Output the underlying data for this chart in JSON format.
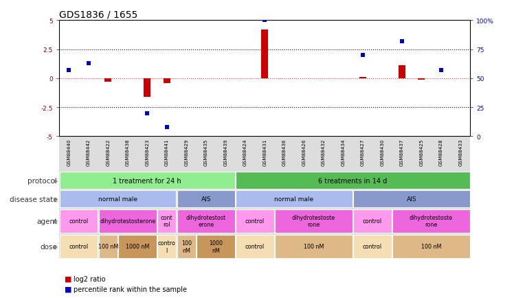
{
  "title": "GDS1836 / 1655",
  "samples": [
    "GSM88440",
    "GSM88442",
    "GSM88422",
    "GSM88438",
    "GSM88423",
    "GSM88441",
    "GSM88429",
    "GSM88435",
    "GSM88439",
    "GSM88424",
    "GSM88431",
    "GSM88436",
    "GSM88426",
    "GSM88432",
    "GSM88434",
    "GSM88427",
    "GSM88430",
    "GSM88437",
    "GSM88425",
    "GSM88428",
    "GSM88433"
  ],
  "log2_ratio": [
    0.0,
    0.0,
    -0.3,
    0.0,
    -1.6,
    -0.4,
    0.0,
    0.0,
    0.0,
    0.0,
    4.2,
    0.0,
    0.0,
    0.0,
    0.0,
    0.1,
    0.0,
    1.1,
    -0.1,
    0.0,
    0.0
  ],
  "percentile": [
    57,
    63,
    null,
    null,
    20,
    8,
    null,
    null,
    null,
    null,
    100,
    null,
    null,
    null,
    null,
    70,
    null,
    82,
    null,
    57,
    null
  ],
  "ylim_left": [
    -5,
    5
  ],
  "ylim_right": [
    0,
    100
  ],
  "yticks_left": [
    -5,
    -2.5,
    0,
    2.5,
    5
  ],
  "yticks_right": [
    0,
    25,
    50,
    75,
    100
  ],
  "ytick_labels_right": [
    "0",
    "25",
    "50",
    "75",
    "100%"
  ],
  "protocol_row": {
    "label": "protocol",
    "segments": [
      {
        "text": "1 treatment for 24 h",
        "start": 0,
        "end": 9,
        "color": "#90EE90"
      },
      {
        "text": "6 treatments in 14 d",
        "start": 9,
        "end": 21,
        "color": "#55BB55"
      }
    ]
  },
  "disease_state_row": {
    "label": "disease state",
    "segments": [
      {
        "text": "normal male",
        "start": 0,
        "end": 6,
        "color": "#AABBEE"
      },
      {
        "text": "AIS",
        "start": 6,
        "end": 9,
        "color": "#8899CC"
      },
      {
        "text": "normal male",
        "start": 9,
        "end": 15,
        "color": "#AABBEE"
      },
      {
        "text": "AIS",
        "start": 15,
        "end": 21,
        "color": "#8899CC"
      }
    ]
  },
  "agent_row": {
    "label": "agent",
    "segments": [
      {
        "text": "control",
        "start": 0,
        "end": 2,
        "color": "#FF99EE"
      },
      {
        "text": "dihydrotestosterone",
        "start": 2,
        "end": 5,
        "color": "#EE66DD"
      },
      {
        "text": "cont\nrol",
        "start": 5,
        "end": 6,
        "color": "#FF99EE"
      },
      {
        "text": "dihydrotestost\nerone",
        "start": 6,
        "end": 9,
        "color": "#EE66DD"
      },
      {
        "text": "control",
        "start": 9,
        "end": 11,
        "color": "#FF99EE"
      },
      {
        "text": "dihydrotestoste\nrone",
        "start": 11,
        "end": 15,
        "color": "#EE66DD"
      },
      {
        "text": "control",
        "start": 15,
        "end": 17,
        "color": "#FF99EE"
      },
      {
        "text": "dihydrotestoste\nrone",
        "start": 17,
        "end": 21,
        "color": "#EE66DD"
      }
    ]
  },
  "dose_row": {
    "label": "dose",
    "segments": [
      {
        "text": "control",
        "start": 0,
        "end": 2,
        "color": "#F5DEB3"
      },
      {
        "text": "100 nM",
        "start": 2,
        "end": 3,
        "color": "#DEB887"
      },
      {
        "text": "1000 nM",
        "start": 3,
        "end": 5,
        "color": "#C8965A"
      },
      {
        "text": "contro\nl",
        "start": 5,
        "end": 6,
        "color": "#F5DEB3"
      },
      {
        "text": "100\nnM",
        "start": 6,
        "end": 7,
        "color": "#DEB887"
      },
      {
        "text": "1000\nnM",
        "start": 7,
        "end": 9,
        "color": "#C8965A"
      },
      {
        "text": "control",
        "start": 9,
        "end": 11,
        "color": "#F5DEB3"
      },
      {
        "text": "100 nM",
        "start": 11,
        "end": 15,
        "color": "#DEB887"
      },
      {
        "text": "control",
        "start": 15,
        "end": 17,
        "color": "#F5DEB3"
      },
      {
        "text": "100 nM",
        "start": 17,
        "end": 21,
        "color": "#DEB887"
      }
    ]
  },
  "bar_color": "#CC0000",
  "dot_color": "#0000CC",
  "dot_size": 5,
  "background_color": "#FFFFFF",
  "row_label_color": "#333333",
  "title_fontsize": 10,
  "tick_fontsize": 6.5,
  "label_fontsize": 7.5,
  "annotation_fontsize": 6.5
}
